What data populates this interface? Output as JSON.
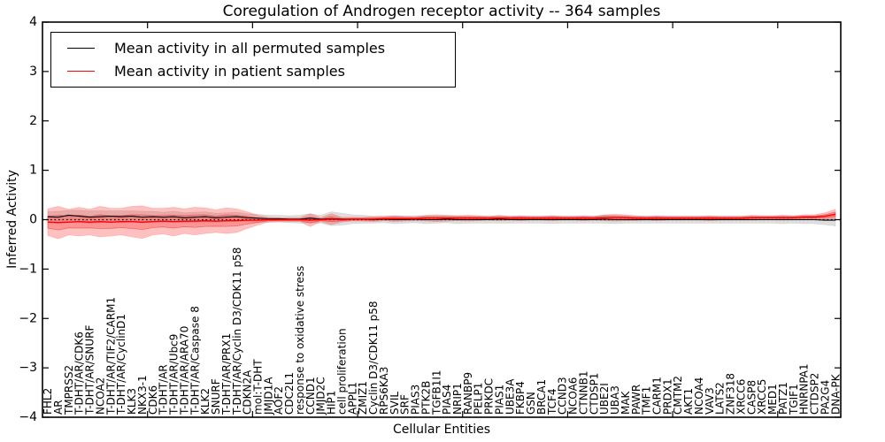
{
  "title": "Coregulation of Androgen receptor activity -- 364 samples",
  "axes": {
    "xlabel": "Cellular Entities",
    "ylabel": "Inferred Activity",
    "ytick_labels": [
      "4",
      "3",
      "2",
      "1",
      "0",
      "−1",
      "−2",
      "−3",
      "−4"
    ],
    "ytick_values": [
      4,
      3,
      2,
      1,
      0,
      -1,
      -2,
      -3,
      -4
    ]
  },
  "legend": {
    "items": [
      {
        "label": "Mean activity in all permuted samples",
        "color": "#000000"
      },
      {
        "label": "Mean activity in patient samples",
        "color": "#ff0000"
      }
    ]
  },
  "colors": {
    "permuted_line": "#000000",
    "patient_line": "#ff0000",
    "permuted_band": "rgba(110,110,110,0.22)",
    "patient_band": "rgba(255,45,45,0.30)",
    "patient_band_edge": "rgba(210,30,30,0.45)",
    "axis": "#000000"
  },
  "chart_data": {
    "type": "line",
    "title": "Coregulation of Androgen receptor activity -- 364 samples",
    "xlabel": "Cellular Entities",
    "ylabel": "Inferred Activity",
    "ylim": [
      -4,
      4
    ],
    "grid": false,
    "legend_position": "upper left",
    "zero_line_style": "dotted",
    "x_major_tick_interval": 10,
    "categories": [
      "FHL2",
      "AR",
      "TMPRSS2",
      "T-DHT/AR/CDK6",
      "T-DHT/AR/SNURF",
      "NCOA2",
      "T-DHT/AR/TIF2/CARM1",
      "T-DHT/AR/CyclinD1",
      "KLK3",
      "NKX3-1",
      "CDK6",
      "T-DHT/AR",
      "T-DHT/AR/Ubc9",
      "T-DHT/AR/ARA70",
      "T-DHT/AR/Caspase 8",
      "KLK2",
      "SNURF",
      "T-DHT/AR/PRX1",
      "T-DHT/AR/Cyclin D3/CDK11 p58",
      "CDKN2A",
      "mol:T-DHT",
      "JMJD1A",
      "AOF2",
      "CDC2L1",
      "response to oxidative stress",
      "CCND1",
      "JMJD2C",
      "HIP1",
      "cell proliferation",
      "APPL1",
      "ZMIZ1",
      "Cyclin D3/CDK11 p58",
      "RPS6KA3",
      "SVIL",
      "SRF",
      "PIAS3",
      "PTK2B",
      "TGFB1I1",
      "PIAS4",
      "NRIP1",
      "RANBP9",
      "PELP1",
      "PRKDC",
      "PIAS1",
      "UBE3A",
      "FKBP4",
      "GSN",
      "BRCA1",
      "TCF4",
      "CCND3",
      "NCOA6",
      "CTNNB1",
      "CTDSP1",
      "UBE2I",
      "UBA3",
      "MAK",
      "PAWR",
      "TMF1",
      "CARM1",
      "PRDX1",
      "CMTM2",
      "AKT1",
      "NCOA4",
      "VAV3",
      "LATS2",
      "ZNF318",
      "XRCC6",
      "CASP8",
      "XRCC5",
      "MED1",
      "PATZ1",
      "TGIF1",
      "HNRNPA1",
      "CTDSP2",
      "PA2G4",
      "DNA-PK"
    ],
    "series": [
      {
        "name": "Mean activity in all permuted samples",
        "color": "#000000",
        "values": [
          0.06,
          0.05,
          0.09,
          0.07,
          0.05,
          0.06,
          0.07,
          0.06,
          0.07,
          0.05,
          0.06,
          0.05,
          0.06,
          0.04,
          0.05,
          0.06,
          0.04,
          0.05,
          0.06,
          0.04,
          0.03,
          0.02,
          0.02,
          0.01,
          0.01,
          0.03,
          0.01,
          0.02,
          0.01,
          0.01,
          0.01,
          0.0,
          0.01,
          0.0,
          0.0,
          0.01,
          0.0,
          0.0,
          0.01,
          0.0,
          0.0,
          0.0,
          0.0,
          0.01,
          0.0,
          0.0,
          0.0,
          0.0,
          0.0,
          0.0,
          0.0,
          0.0,
          0.0,
          0.01,
          0.0,
          0.0,
          0.0,
          0.0,
          0.0,
          0.0,
          0.0,
          0.0,
          0.0,
          0.0,
          0.0,
          0.0,
          0.0,
          0.0,
          0.0,
          0.0,
          0.0,
          0.0,
          0.0,
          0.0,
          -0.01,
          -0.01
        ],
        "band_halfwidth": [
          0.1,
          0.12,
          0.1,
          0.12,
          0.13,
          0.12,
          0.11,
          0.12,
          0.11,
          0.12,
          0.11,
          0.1,
          0.11,
          0.1,
          0.1,
          0.1,
          0.09,
          0.09,
          0.09,
          0.08,
          0.08,
          0.07,
          0.07,
          0.07,
          0.08,
          0.09,
          0.08,
          0.14,
          0.12,
          0.09,
          0.08,
          0.07,
          0.07,
          0.08,
          0.07,
          0.07,
          0.08,
          0.07,
          0.07,
          0.08,
          0.07,
          0.07,
          0.07,
          0.08,
          0.07,
          0.07,
          0.07,
          0.07,
          0.08,
          0.07,
          0.07,
          0.07,
          0.07,
          0.08,
          0.08,
          0.07,
          0.07,
          0.07,
          0.07,
          0.07,
          0.07,
          0.07,
          0.07,
          0.07,
          0.07,
          0.07,
          0.07,
          0.07,
          0.07,
          0.07,
          0.08,
          0.07,
          0.08,
          0.08,
          0.09,
          0.12
        ]
      },
      {
        "name": "Mean activity in patient samples",
        "color": "#ff0000",
        "values": [
          -0.05,
          -0.06,
          -0.05,
          -0.04,
          -0.05,
          -0.04,
          -0.05,
          -0.04,
          -0.04,
          -0.05,
          -0.04,
          -0.03,
          -0.04,
          -0.03,
          -0.03,
          -0.02,
          -0.03,
          -0.02,
          -0.02,
          -0.01,
          -0.01,
          0.0,
          0.0,
          0.0,
          0.0,
          -0.01,
          0.0,
          0.01,
          0.0,
          0.01,
          0.01,
          0.01,
          0.02,
          0.02,
          0.02,
          0.02,
          0.03,
          0.03,
          0.03,
          0.03,
          0.03,
          0.03,
          0.03,
          0.03,
          0.03,
          0.03,
          0.03,
          0.03,
          0.03,
          0.03,
          0.03,
          0.03,
          0.03,
          0.04,
          0.04,
          0.04,
          0.03,
          0.03,
          0.03,
          0.03,
          0.03,
          0.03,
          0.03,
          0.03,
          0.03,
          0.03,
          0.03,
          0.04,
          0.04,
          0.04,
          0.04,
          0.04,
          0.05,
          0.05,
          0.07,
          0.11
        ],
        "band_halfwidth": [
          0.27,
          0.33,
          0.26,
          0.29,
          0.26,
          0.31,
          0.28,
          0.27,
          0.31,
          0.33,
          0.27,
          0.26,
          0.29,
          0.25,
          0.28,
          0.26,
          0.23,
          0.26,
          0.24,
          0.17,
          0.1,
          0.05,
          0.04,
          0.04,
          0.04,
          0.13,
          0.04,
          0.11,
          0.05,
          0.04,
          0.04,
          0.05,
          0.04,
          0.06,
          0.05,
          0.04,
          0.06,
          0.07,
          0.06,
          0.05,
          0.06,
          0.05,
          0.04,
          0.05,
          0.04,
          0.05,
          0.04,
          0.04,
          0.05,
          0.04,
          0.04,
          0.05,
          0.04,
          0.06,
          0.07,
          0.06,
          0.05,
          0.04,
          0.05,
          0.04,
          0.04,
          0.04,
          0.04,
          0.05,
          0.04,
          0.04,
          0.04,
          0.05,
          0.04,
          0.04,
          0.05,
          0.04,
          0.05,
          0.05,
          0.07,
          0.1
        ]
      }
    ]
  }
}
